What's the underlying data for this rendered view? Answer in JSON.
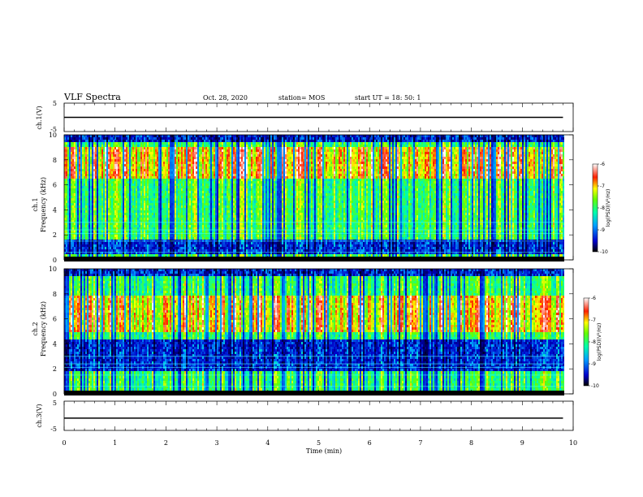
{
  "header": {
    "title": "VLF Spectra",
    "date": "Oct. 28, 2020",
    "station": "station= MOS",
    "start": "start  UT =   18: 50: 1"
  },
  "colors": {
    "background": "#ffffff",
    "axes": "#000000",
    "noise_floor": "#000044",
    "colormap": [
      "#000000",
      "#0000cc",
      "#00ccff",
      "#00ff66",
      "#ffff00",
      "#ff0000",
      "#ffffff"
    ]
  },
  "chart_data": [
    {
      "type": "line",
      "panel": "top-waveform",
      "ylabel": "ch.1(V)",
      "ylim": [
        -5,
        5
      ],
      "ytick_labels": [
        "5",
        "-5"
      ],
      "xlim": [
        0,
        10
      ],
      "x": [
        0,
        9.8
      ],
      "y": [
        0,
        0
      ]
    },
    {
      "type": "heatmap",
      "panel": "ch1-spectrogram",
      "ylabel": "ch.1\nFrequency (kHz)",
      "ylim": [
        0,
        10
      ],
      "ytick_labels": [
        "0",
        "2",
        "4",
        "6",
        "8",
        "10"
      ],
      "xlim": [
        0,
        10
      ],
      "data_end_min": 9.8,
      "strong_band_khz": [
        6.5,
        9.2
      ],
      "dark_band_khz": [
        0.5,
        1.8
      ],
      "colorbar": {
        "label": "log(PSD)(V²/Hz)",
        "range": [
          -10,
          -6
        ],
        "tick_labels": [
          "-6",
          "-7",
          "-8",
          "-9",
          "-10"
        ]
      }
    },
    {
      "type": "heatmap",
      "panel": "ch2-spectrogram",
      "ylabel": "ch.2\nFrequency (kHz)",
      "ylim": [
        0,
        10
      ],
      "ytick_labels": [
        "0",
        "2",
        "4",
        "6",
        "8",
        "10"
      ],
      "xlim": [
        0,
        10
      ],
      "data_end_min": 9.8,
      "strong_band_khz": [
        5.0,
        8.0
      ],
      "dark_band_khz": [
        2.0,
        4.5
      ],
      "colorbar": {
        "label": "log(PSD)(V²/Hz)",
        "range": [
          -10,
          -6
        ],
        "tick_labels": [
          "-6",
          "-7",
          "-8",
          "-9",
          "-10"
        ]
      }
    },
    {
      "type": "line",
      "panel": "bottom-waveform",
      "ylabel": "ch.3(V)",
      "ylim": [
        -5,
        5
      ],
      "ytick_labels": [
        "5",
        "-5"
      ],
      "xlim": [
        0,
        10
      ],
      "xlabel": "Time  (min)",
      "xtick_labels": [
        "0",
        "1",
        "2",
        "3",
        "4",
        "5",
        "6",
        "7",
        "8",
        "9",
        "10"
      ],
      "x": [
        0,
        9.8
      ],
      "y": [
        -0.8,
        -0.8
      ]
    }
  ]
}
